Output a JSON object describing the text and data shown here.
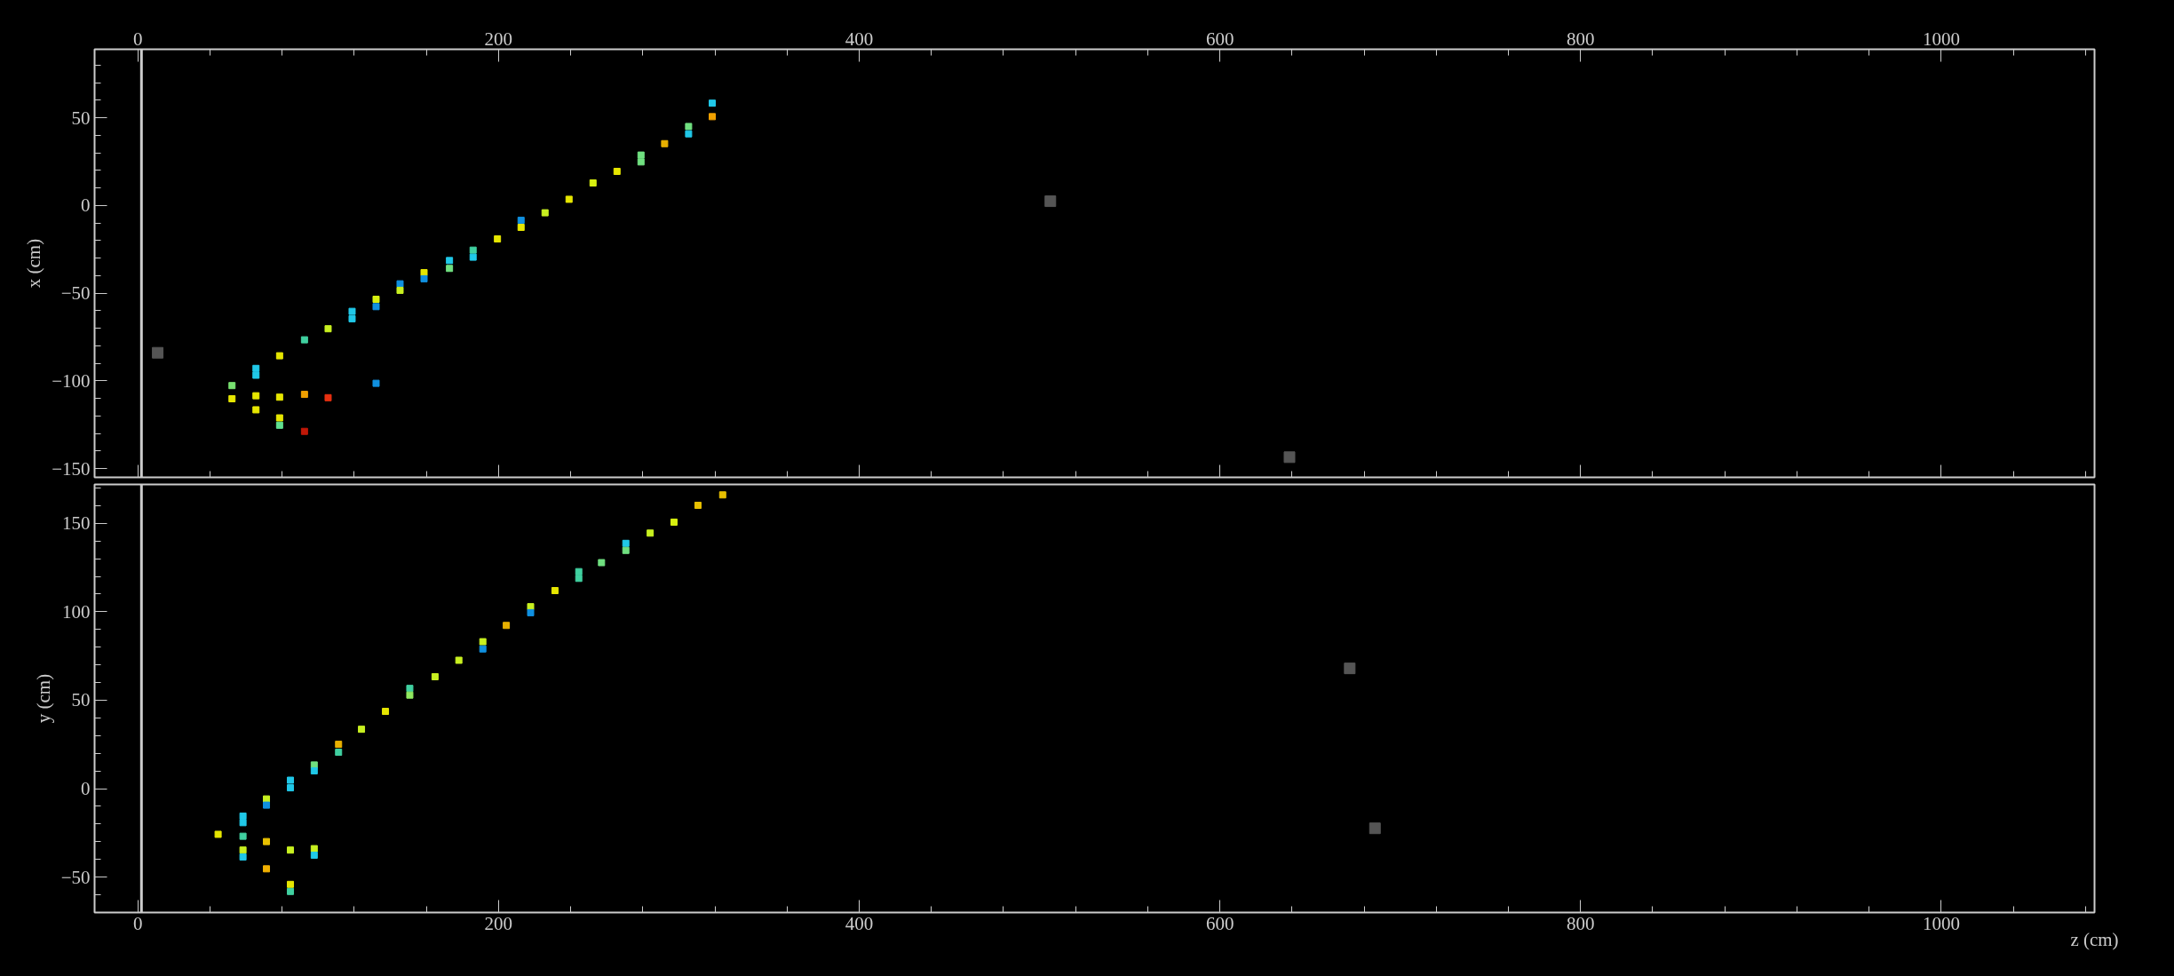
{
  "chart_data": [
    {
      "type": "scatter",
      "ylabel": "x (cm)",
      "marker": "square",
      "grid": false,
      "tick_labels": "y",
      "xlim": [
        -24,
        1085
      ],
      "x2lim": [
        -24,
        1085
      ],
      "x2ticks": [
        0,
        200,
        400,
        600,
        800,
        1000
      ],
      "ylim": [
        -155,
        89
      ],
      "yticks": [
        -150,
        -100,
        -50,
        0,
        50
      ],
      "ref_lines": [
        {
          "axis": "x",
          "value": 2,
          "color": "#cccccc"
        }
      ],
      "series": [
        {
          "x": [
            52.2,
            52.2,
            65.5,
            65.5,
            65.5,
            65.5,
            78.6,
            78.6,
            78.6,
            78.6,
            92.4,
            92.4,
            92.4,
            105.5,
            105.5,
            118.8,
            118.8,
            132.1,
            132.1,
            132.1,
            145.4,
            145.4,
            158.7,
            158.7,
            172.8,
            172.8,
            185.9,
            185.9,
            199.4,
            212.5,
            212.5,
            225.8,
            239.1,
            252.4,
            265.7,
            279,
            279,
            292.1,
            305.4,
            305.4,
            318.5,
            318.5
          ],
          "values": [
            -102.7,
            -110.2,
            -92.9,
            -96.8,
            -108.5,
            -116.5,
            -85.7,
            -109.3,
            -121.1,
            -125.3,
            -76.6,
            -107.7,
            -128.8,
            -70.3,
            -109.6,
            -60.4,
            -64.6,
            -53.5,
            -57.7,
            -101.4,
            -44.7,
            -48.4,
            -38.3,
            -41.8,
            -31.4,
            -35.9,
            -25.5,
            -29.5,
            -19.1,
            -8.5,
            -12.5,
            -4.2,
            3.5,
            12.8,
            19.4,
            28.7,
            24.8,
            35.2,
            45,
            40.8,
            58.3,
            50.6
          ],
          "colors": [
            "#78e070",
            "#e6e600",
            "#20c8e8",
            "#20c8e8",
            "#e6e600",
            "#e6e600",
            "#e6e600",
            "#e6e600",
            "#e6e600",
            "#60e090",
            "#40d0a0",
            "#f0a000",
            "#c01808",
            "#c8f020",
            "#e83010",
            "#20c8e8",
            "#20c8e8",
            "#d8f010",
            "#1090e0",
            "#1090e0",
            "#1090e0",
            "#c8f020",
            "#e6e600",
            "#1090e0",
            "#20c8e8",
            "#70e080",
            "#40d0a0",
            "#20c8e8",
            "#e6e600",
            "#1090e0",
            "#e6e600",
            "#c8f020",
            "#e6e600",
            "#d8f010",
            "#e6e600",
            "#70e080",
            "#70e080",
            "#e8b000",
            "#70e080",
            "#20c8e8",
            "#20c8e8",
            "#f0a000"
          ]
        },
        {
          "x": [
            11,
            506,
            638.6
          ],
          "values": [
            -84,
            2.4,
            -143.5
          ],
          "color": "#555555"
        }
      ]
    },
    {
      "type": "scatter",
      "xlabel": "z (cm)",
      "ylabel": "y (cm)",
      "marker": "square",
      "grid": false,
      "xlim": [
        -24,
        1085
      ],
      "xticks": [
        0,
        200,
        400,
        600,
        800,
        1000
      ],
      "ylim": [
        -70,
        172
      ],
      "yticks": [
        -50,
        0,
        50,
        100,
        150
      ],
      "ref_lines": [
        {
          "axis": "x",
          "value": 2,
          "color": "#cccccc"
        }
      ],
      "series": [
        {
          "x": [
            44.5,
            58.3,
            58.3,
            58.3,
            58.3,
            58.3,
            71.3,
            71.3,
            71.3,
            71.3,
            84.6,
            84.6,
            84.6,
            84.6,
            84.6,
            97.8,
            97.8,
            97.8,
            97.8,
            111.3,
            111.3,
            124,
            137.3,
            150.8,
            150.8,
            164.8,
            178,
            191.3,
            191.3,
            204.3,
            217.8,
            217.8,
            231.3,
            244.5,
            244.5,
            257.1,
            270.6,
            270.6,
            284.1,
            297.3,
            310.6,
            324.3
          ],
          "values": [
            -25.8,
            -15.5,
            -19.2,
            -26.9,
            -34.7,
            -38.6,
            -5.8,
            -9.3,
            -29.9,
            -45.3,
            4.8,
            0.5,
            -34.7,
            -54.1,
            -58.1,
            13.4,
            10.1,
            -33.9,
            -37.6,
            25.1,
            20.6,
            33.6,
            43.7,
            56.7,
            52.9,
            63.3,
            72.6,
            83.1,
            79,
            92.3,
            102.9,
            99.5,
            112,
            122.7,
            118.9,
            127.8,
            138.7,
            134.7,
            144.5,
            150.7,
            160.2,
            166.1
          ],
          "colors": [
            "#e6e600",
            "#20c8e8",
            "#20c8e8",
            "#40d0a0",
            "#c8f020",
            "#20c8e8",
            "#c8f020",
            "#1090e0",
            "#e8c000",
            "#f0b000",
            "#20c8e8",
            "#20c8e8",
            "#c8f020",
            "#e6e600",
            "#40d0a0",
            "#70e080",
            "#20c8e8",
            "#c8f020",
            "#20c8e8",
            "#e8b000",
            "#40d0a0",
            "#c8f020",
            "#e6e600",
            "#40d0a0",
            "#90e860",
            "#c8f020",
            "#c8f020",
            "#c8f020",
            "#1090e0",
            "#e8b000",
            "#c8f020",
            "#1090e0",
            "#e6e600",
            "#40d0a0",
            "#40d0a0",
            "#70e080",
            "#20c8e8",
            "#70e080",
            "#c8f020",
            "#d8f010",
            "#e8c000",
            "#e8c000"
          ]
        },
        {
          "x": [
            672,
            686
          ],
          "values": [
            68,
            -22.4
          ],
          "color": "#555555"
        }
      ]
    }
  ]
}
